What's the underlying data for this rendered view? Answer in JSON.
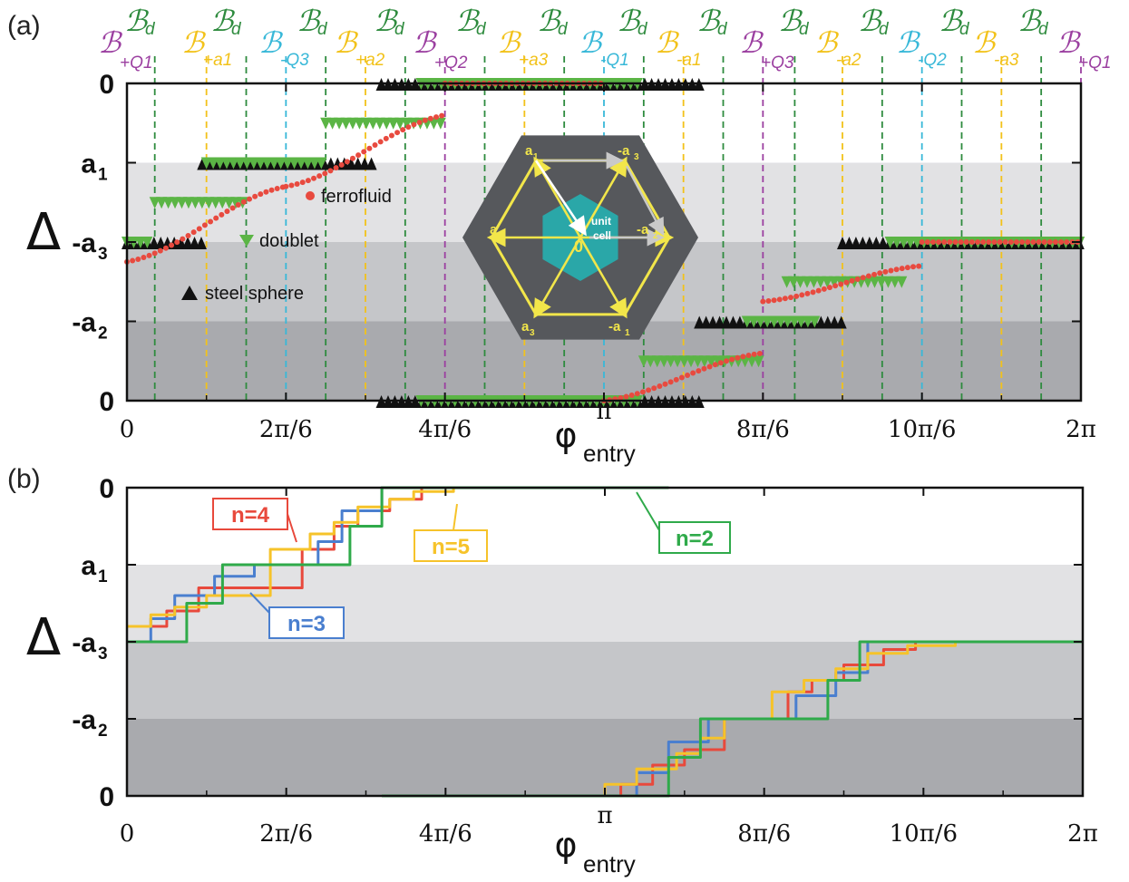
{
  "colors": {
    "ferrofluid": "#e84a3f",
    "doublet": "#5bb545",
    "steel": "#111111",
    "Bd": "#2e8b3e",
    "BQ": "#9b3fa0",
    "Ba": "#f2c21a",
    "BmQ": "#38b8d8",
    "n2": "#2faa4a",
    "n3": "#4a7fcf",
    "n4": "#e8493c",
    "n5": "#f6c32a",
    "band_light": "#e2e2e4",
    "band_mid": "#c5c6c9",
    "band_dark": "#a9aaae"
  },
  "panel_a": {
    "label": "(a)",
    "xlabel": "φ",
    "xlabel_sub": "entry",
    "xticks": [
      "0",
      "2π/6",
      "4π/6",
      "π",
      "8π/6",
      "10π/6",
      "2π"
    ],
    "ytick_labels": [
      "0",
      "a",
      "-a",
      "-a",
      "0"
    ],
    "ytick_subs": [
      "",
      "1",
      "3",
      "2",
      ""
    ],
    "ylabel": "Δ",
    "legend": {
      "ferrofluid": "ferrofluid",
      "doublet": "doublet",
      "steel": "steel sphere"
    },
    "top_labels": {
      "B_script": "ℬ",
      "d_sub": "d",
      "subs": [
        "+Q1",
        "+a1",
        "-Q3",
        "+a2",
        "+Q2",
        "+a3",
        "-Q1",
        "-a1",
        "+Q3",
        "-a2",
        "-Q2",
        "-a3",
        "+Q1"
      ]
    },
    "inset": {
      "labels": [
        "a",
        "-a",
        "-a",
        "-a",
        "a",
        "a"
      ],
      "subs": [
        "1",
        "3",
        "2",
        "1",
        "3",
        "2"
      ],
      "center": "0",
      "unit1": "unit",
      "unit2": "cell"
    }
  },
  "panel_b": {
    "label": "(b)",
    "xlabel": "φ",
    "xlabel_sub": "entry",
    "xticks": [
      "0",
      "2π/6",
      "4π/6",
      "π",
      "8π/6",
      "10π/6",
      "2π"
    ],
    "ytick_labels": [
      "0",
      "a",
      "-a",
      "-a",
      "0"
    ],
    "ytick_subs": [
      "",
      "1",
      "3",
      "2",
      ""
    ],
    "ylabel": "Δ",
    "series_labels": [
      "n=4",
      "n=5",
      "n=2",
      "n=3"
    ]
  },
  "chart_data": [
    {
      "type": "scatter",
      "panel": "a",
      "x_unit": "multiples of π/6",
      "xlim": [
        0,
        12
      ],
      "y_levels": [
        "0",
        "a1",
        "-a3",
        "-a2",
        "0"
      ],
      "series": [
        {
          "name": "ferrofluid",
          "segments": [
            {
              "x0": 0.0,
              "x1": 2.0,
              "y0": 1.75,
              "y1": 2.7
            },
            {
              "x0": 2.0,
              "x1": 4.0,
              "y0": 2.7,
              "y1": 3.6
            },
            {
              "x0": 4.0,
              "x1": 6.0,
              "y0": 4.0,
              "y1": 4.0
            },
            {
              "x0": 6.0,
              "x1": 8.0,
              "y0": 0.0,
              "y1": 0.6
            },
            {
              "x0": 8.0,
              "x1": 10.0,
              "y0": 1.25,
              "y1": 1.7
            },
            {
              "x0": 10.0,
              "x1": 12.0,
              "y0": 2.0,
              "y1": 2.0
            }
          ]
        },
        {
          "name": "doublet",
          "segments": [
            {
              "x0": 0.0,
              "x1": 0.3,
              "y": 2.0
            },
            {
              "x0": 0.35,
              "x1": 1.5,
              "y": 2.5
            },
            {
              "x0": 1.0,
              "x1": 2.5,
              "y": 3.0
            },
            {
              "x0": 2.5,
              "x1": 4.0,
              "y": 3.5
            },
            {
              "x0": 3.7,
              "x1": 6.5,
              "y": 4.0
            },
            {
              "x0": 3.7,
              "x1": 6.5,
              "y": 0.0
            },
            {
              "x0": 6.5,
              "x1": 8.0,
              "y": 0.5
            },
            {
              "x0": 7.8,
              "x1": 8.7,
              "y": 1.0
            },
            {
              "x0": 8.3,
              "x1": 9.8,
              "y": 1.5
            },
            {
              "x0": 9.6,
              "x1": 12.0,
              "y": 2.0
            }
          ]
        },
        {
          "name": "steel sphere",
          "segments": [
            {
              "x0": 0.0,
              "x1": 1.0,
              "y": 2.0
            },
            {
              "x0": 0.95,
              "x1": 3.1,
              "y": 3.0
            },
            {
              "x0": 3.2,
              "x1": 7.2,
              "y": 4.0
            },
            {
              "x0": 3.2,
              "x1": 7.2,
              "y": 0.0
            },
            {
              "x0": 7.2,
              "x1": 9.0,
              "y": 1.0
            },
            {
              "x0": 9.0,
              "x1": 12.0,
              "y": 2.0
            }
          ]
        }
      ]
    },
    {
      "type": "line",
      "panel": "b",
      "x_unit": "multiples of π/6",
      "xlim": [
        0,
        12
      ],
      "y_levels": [
        "0",
        "a1",
        "-a3",
        "-a2",
        "0"
      ],
      "series": [
        {
          "name": "n=2",
          "upper": [
            [
              0,
              2
            ],
            [
              0.75,
              2
            ],
            [
              0.75,
              2.5
            ],
            [
              1.2,
              2.5
            ],
            [
              1.2,
              3
            ],
            [
              2.8,
              3
            ],
            [
              2.8,
              3.5
            ],
            [
              3.2,
              3.5
            ],
            [
              3.2,
              4
            ],
            [
              6.8,
              4
            ]
          ],
          "lower": [
            [
              3.2,
              0
            ],
            [
              6.8,
              0
            ],
            [
              6.8,
              0.5
            ],
            [
              7.2,
              0.5
            ],
            [
              7.2,
              1
            ],
            [
              8.8,
              1
            ],
            [
              8.8,
              1.5
            ],
            [
              9.2,
              1.5
            ],
            [
              9.2,
              2
            ],
            [
              12,
              2
            ]
          ]
        },
        {
          "name": "n=3",
          "upper": [
            [
              0,
              2
            ],
            [
              0.3,
              2
            ],
            [
              0.3,
              2.3
            ],
            [
              0.6,
              2.3
            ],
            [
              0.6,
              2.6
            ],
            [
              1.1,
              2.6
            ],
            [
              1.1,
              2.85
            ],
            [
              1.6,
              2.85
            ],
            [
              1.6,
              3
            ],
            [
              2.4,
              3
            ],
            [
              2.4,
              3.3
            ],
            [
              2.7,
              3.3
            ],
            [
              2.7,
              3.7
            ],
            [
              3.2,
              3.7
            ],
            [
              3.2,
              4
            ],
            [
              6.8,
              4
            ]
          ],
          "lower": [
            [
              3.2,
              0
            ],
            [
              6.4,
              0
            ],
            [
              6.4,
              0.3
            ],
            [
              6.8,
              0.3
            ],
            [
              6.8,
              0.7
            ],
            [
              7.3,
              0.7
            ],
            [
              7.3,
              1
            ],
            [
              8.4,
              1
            ],
            [
              8.4,
              1.3
            ],
            [
              8.9,
              1.3
            ],
            [
              8.9,
              1.6
            ],
            [
              9.3,
              1.6
            ],
            [
              9.3,
              2
            ],
            [
              12,
              2
            ]
          ]
        },
        {
          "name": "n=4",
          "upper": [
            [
              0,
              2.2
            ],
            [
              0.5,
              2.2
            ],
            [
              0.5,
              2.4
            ],
            [
              0.9,
              2.4
            ],
            [
              0.9,
              2.7
            ],
            [
              2.2,
              2.7
            ],
            [
              2.2,
              3.2
            ],
            [
              2.6,
              3.2
            ],
            [
              2.6,
              3.5
            ],
            [
              2.9,
              3.5
            ],
            [
              2.9,
              3.7
            ],
            [
              3.3,
              3.7
            ],
            [
              3.3,
              3.85
            ],
            [
              3.7,
              3.85
            ],
            [
              3.7,
              4
            ],
            [
              6.8,
              4
            ]
          ],
          "lower": [
            [
              3.2,
              0
            ],
            [
              6.2,
              0
            ],
            [
              6.2,
              0.15
            ],
            [
              6.6,
              0.15
            ],
            [
              6.6,
              0.4
            ],
            [
              7.0,
              0.4
            ],
            [
              7.0,
              0.6
            ],
            [
              7.5,
              0.6
            ],
            [
              7.5,
              1
            ],
            [
              8.3,
              1
            ],
            [
              8.3,
              1.35
            ],
            [
              8.6,
              1.35
            ],
            [
              8.6,
              1.5
            ],
            [
              9.0,
              1.5
            ],
            [
              9.0,
              1.7
            ],
            [
              9.5,
              1.7
            ],
            [
              9.5,
              1.9
            ],
            [
              9.9,
              1.9
            ],
            [
              9.9,
              2
            ],
            [
              12,
              2
            ]
          ]
        },
        {
          "name": "n=5",
          "upper": [
            [
              0,
              2.2
            ],
            [
              0.3,
              2.2
            ],
            [
              0.3,
              2.35
            ],
            [
              0.6,
              2.35
            ],
            [
              0.6,
              2.45
            ],
            [
              1.0,
              2.45
            ],
            [
              1.0,
              2.6
            ],
            [
              1.8,
              2.6
            ],
            [
              1.8,
              3.2
            ],
            [
              2.3,
              3.2
            ],
            [
              2.3,
              3.4
            ],
            [
              2.6,
              3.4
            ],
            [
              2.6,
              3.55
            ],
            [
              2.9,
              3.55
            ],
            [
              2.9,
              3.75
            ],
            [
              3.3,
              3.75
            ],
            [
              3.3,
              3.85
            ],
            [
              3.6,
              3.85
            ],
            [
              3.6,
              3.95
            ],
            [
              4.1,
              3.95
            ],
            [
              4.1,
              4
            ],
            [
              6.8,
              4
            ]
          ],
          "lower": [
            [
              3.2,
              0
            ],
            [
              6.0,
              0
            ],
            [
              6.0,
              0.15
            ],
            [
              6.4,
              0.15
            ],
            [
              6.4,
              0.35
            ],
            [
              6.9,
              0.35
            ],
            [
              6.9,
              0.55
            ],
            [
              7.2,
              0.55
            ],
            [
              7.2,
              0.75
            ],
            [
              7.5,
              0.75
            ],
            [
              7.5,
              1.0
            ],
            [
              8.1,
              1.0
            ],
            [
              8.1,
              1.35
            ],
            [
              8.5,
              1.35
            ],
            [
              8.5,
              1.5
            ],
            [
              8.9,
              1.5
            ],
            [
              8.9,
              1.65
            ],
            [
              9.3,
              1.65
            ],
            [
              9.3,
              1.85
            ],
            [
              9.8,
              1.85
            ],
            [
              9.8,
              1.95
            ],
            [
              10.4,
              1.95
            ],
            [
              10.4,
              2
            ],
            [
              12,
              2
            ]
          ]
        }
      ]
    }
  ]
}
